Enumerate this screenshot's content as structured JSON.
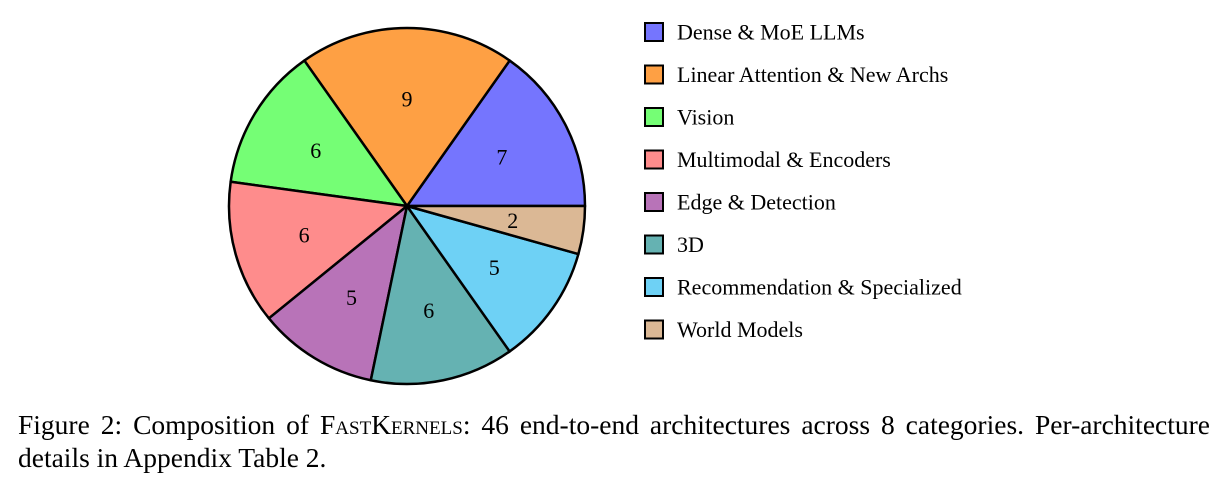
{
  "chart_data": {
    "type": "pie",
    "categories": [
      "Dense & MoE LLMs",
      "Linear Attention & New Archs",
      "Vision",
      "Multimodal & Encoders",
      "Edge & Detection",
      "3D",
      "Recommendation & Specialized",
      "World Models"
    ],
    "values": [
      7,
      9,
      6,
      6,
      5,
      6,
      5,
      2
    ],
    "colors": [
      "#7575fe",
      "#fea044",
      "#75fe75",
      "#fe8c8c",
      "#b873b8",
      "#65b2b2",
      "#6ed1f5",
      "#dbb895"
    ],
    "start_angle_deg": 0,
    "direction": "counterclockwise",
    "legend_placement": "right"
  },
  "caption": {
    "prefix": "Figure 2: Composition of ",
    "name": "FastKernels",
    "suffix": ": 46 end-to-end architectures across 8 categories. Per-architecture details in Appendix Table 2."
  }
}
